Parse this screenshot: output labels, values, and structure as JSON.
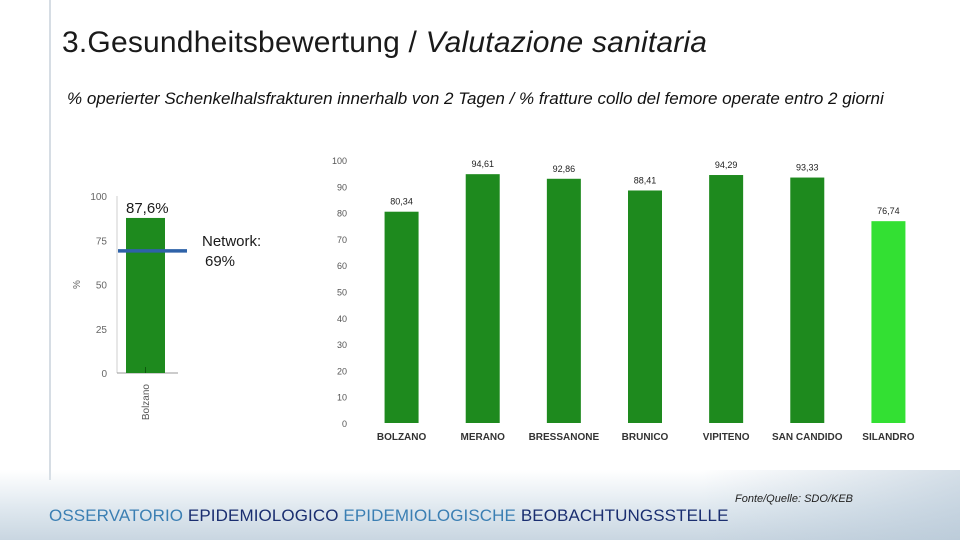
{
  "slide": {
    "title_part1": "3.Gesundheitsbewertung / ",
    "title_part2": "Valutazione sanitaria",
    "subtitle": "% operierter Schenkelhalsfrakturen innerhalb von 2 Tagen / % fratture collo del femore operate entro 2 giorni",
    "source": "Fonte/Quelle: SDO/KEB",
    "footer_part1": "OSSERVATORIO ",
    "footer_part2": "EPIDEMIOLOGICO ",
    "footer_part3": "EPIDEMIOLOGISCHE ",
    "footer_part4": "BEOBACHTUNGSSTELLE"
  },
  "chart_data": [
    {
      "type": "bar",
      "categories": [
        "Bolzano"
      ],
      "values": [
        87.6
      ],
      "data_labels": [
        "87,6%"
      ],
      "ylabel": "%",
      "ylim": [
        0,
        100
      ],
      "yticks": [
        "0",
        "25",
        "50",
        "75",
        "100"
      ],
      "reference_line": {
        "value": 69,
        "label_line1": "Network:",
        "label_line2": "69%",
        "color": "#2e62a8"
      },
      "bar_color": "#1e8a1e"
    },
    {
      "type": "bar",
      "categories": [
        "BOLZANO",
        "MERANO",
        "BRESSANONE",
        "BRUNICO",
        "VIPITENO",
        "SAN CANDIDO",
        "SILANDRO"
      ],
      "values": [
        80.34,
        94.61,
        92.86,
        88.41,
        94.29,
        93.33,
        76.74
      ],
      "data_labels": [
        "80,34",
        "94,61",
        "92,86",
        "88,41",
        "94,29",
        "93,33",
        "76,74"
      ],
      "ylim": [
        0,
        100
      ],
      "yticks": [
        "0",
        "10",
        "20",
        "30",
        "40",
        "50",
        "60",
        "70",
        "80",
        "90",
        "100"
      ],
      "colors": [
        "#1e8a1e",
        "#1e8a1e",
        "#1e8a1e",
        "#1e8a1e",
        "#1e8a1e",
        "#1e8a1e",
        "#33e033"
      ]
    }
  ]
}
